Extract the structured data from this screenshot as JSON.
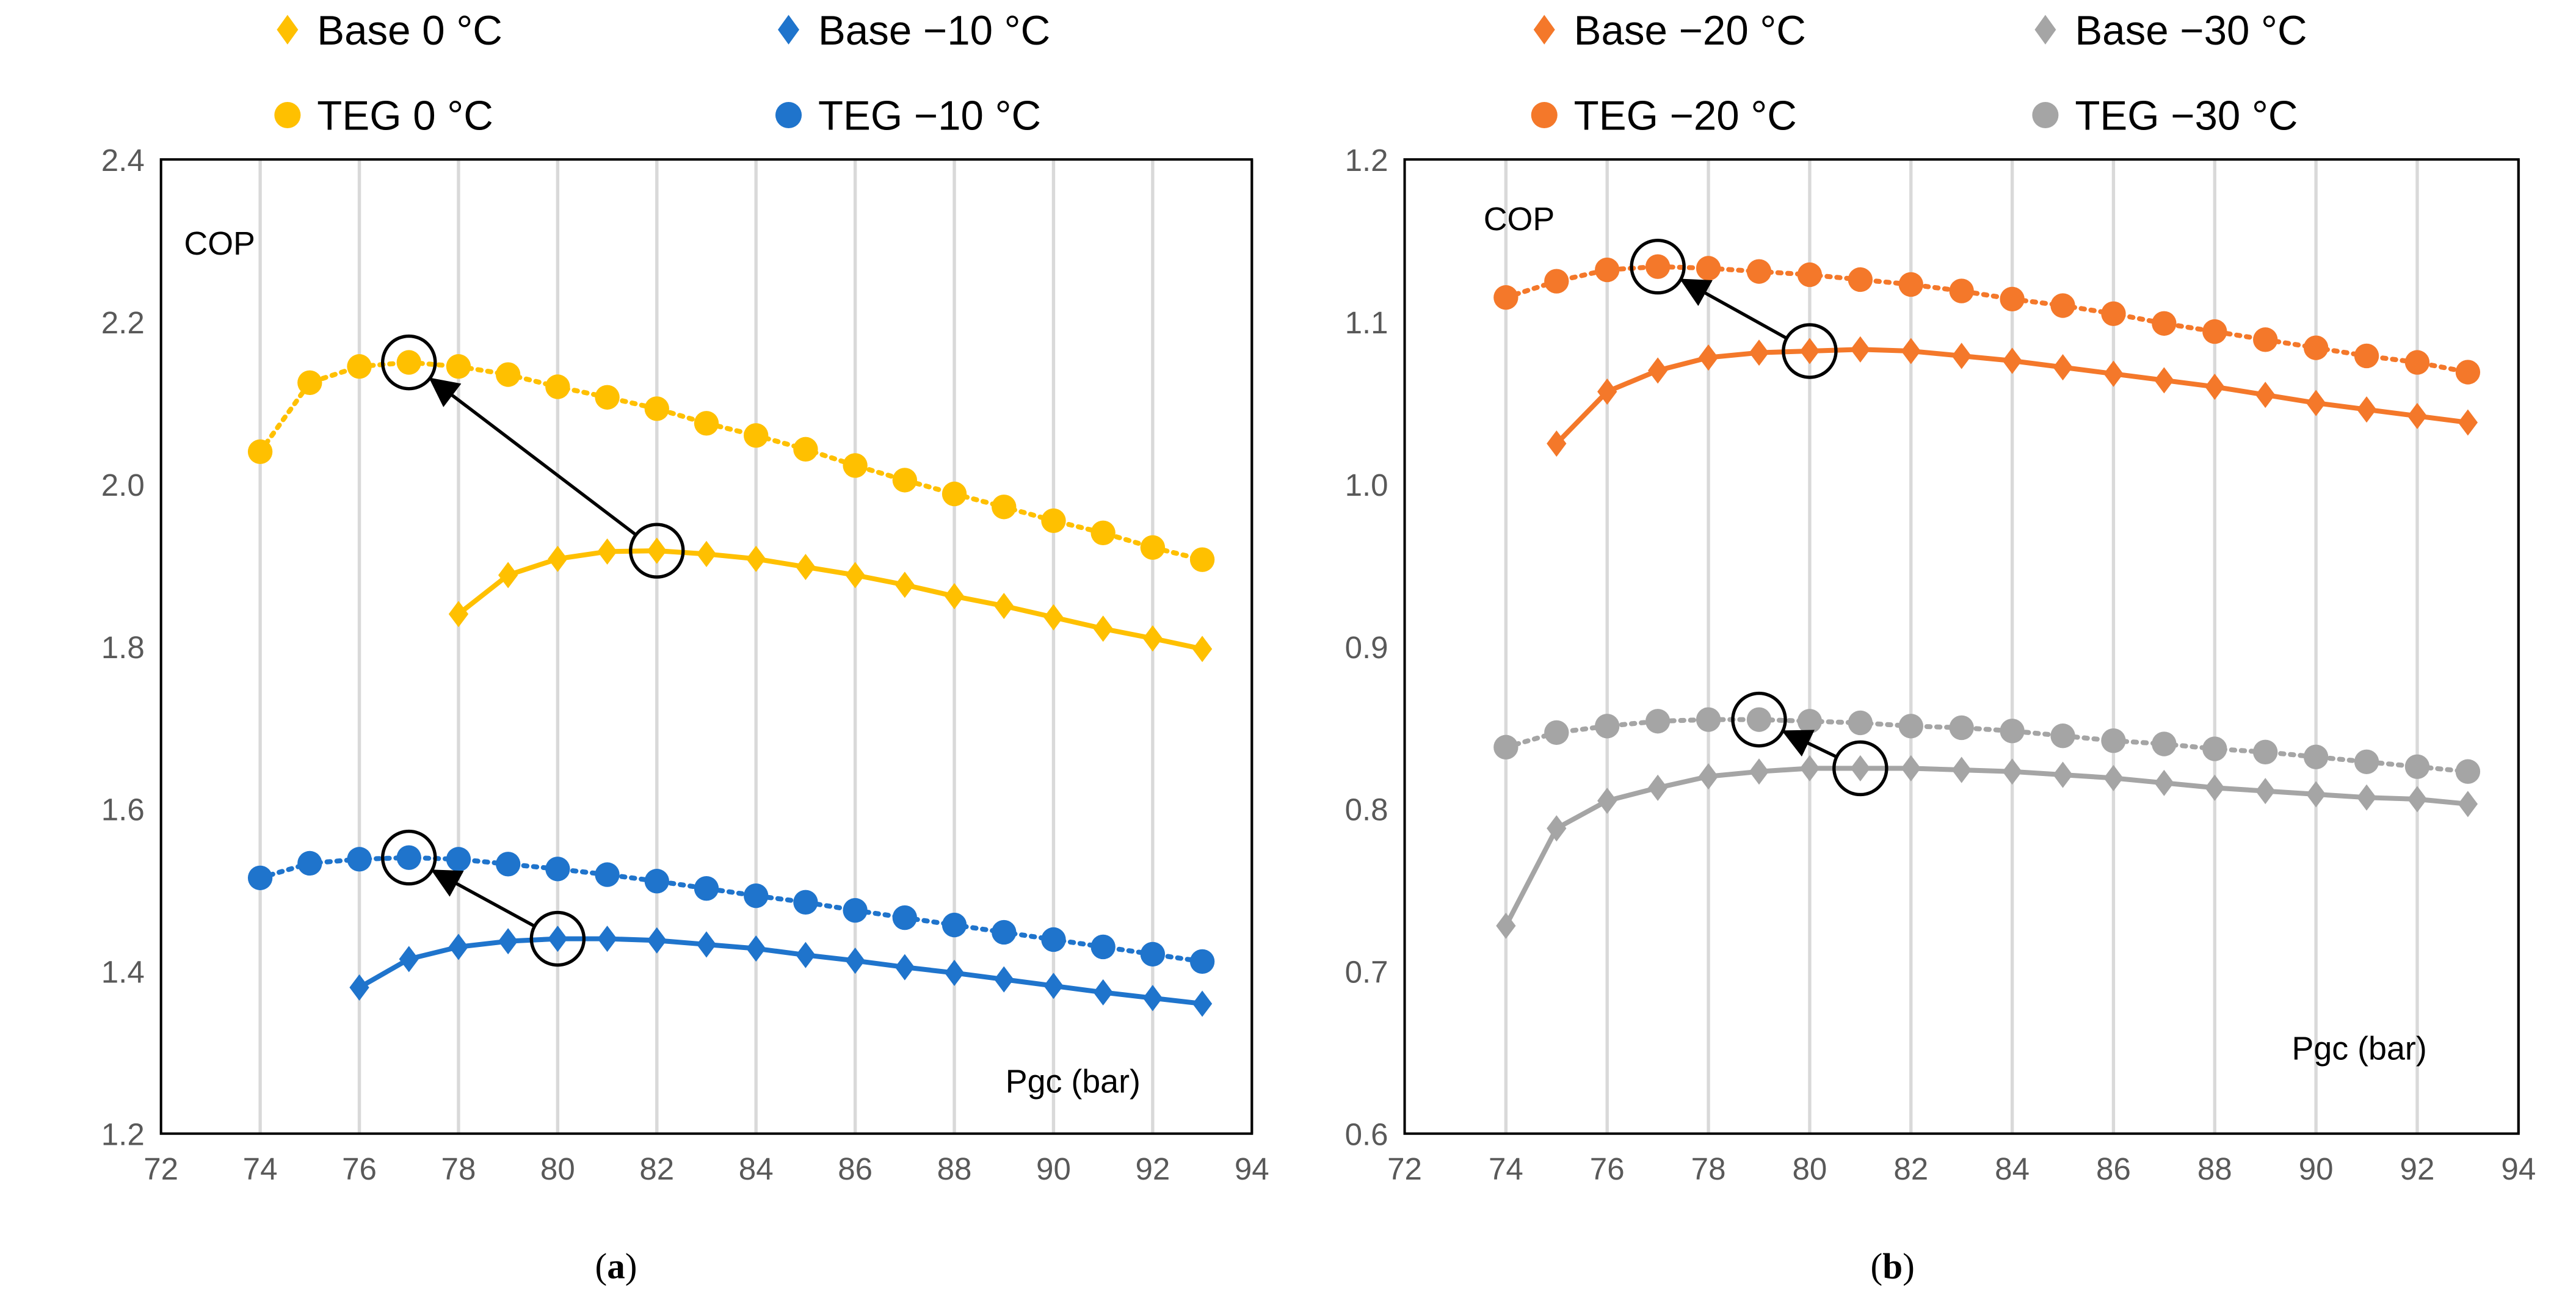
{
  "chart_data": [
    {
      "type": "scatter",
      "panel_label": "(a)",
      "caption_letter": "a",
      "ylabel": "COP",
      "xlabel": "Pgc (bar)",
      "xlim": [
        72,
        94
      ],
      "ylim": [
        1.2,
        2.4
      ],
      "xticks": [
        "72",
        "74",
        "76",
        "78",
        "80",
        "82",
        "84",
        "86",
        "88",
        "90",
        "92",
        "94"
      ],
      "yticks": [
        "1.2",
        "1.4",
        "1.6",
        "1.8",
        "2.0",
        "2.2",
        "2.4"
      ],
      "grid": "vertical",
      "legend_position": "top",
      "series": [
        {
          "name": "Base 0 °C",
          "marker": "diamond",
          "color": "#FFC000",
          "trend": "solid",
          "x": [
            78,
            79,
            80,
            81,
            82,
            83,
            84,
            85,
            86,
            87,
            88,
            89,
            90,
            91,
            92,
            93
          ],
          "y": [
            1.84,
            1.888,
            1.908,
            1.917,
            1.918,
            1.914,
            1.908,
            1.898,
            1.888,
            1.876,
            1.862,
            1.85,
            1.836,
            1.822,
            1.81,
            1.797
          ]
        },
        {
          "name": "Base −10 °C",
          "marker": "diamond",
          "color": "#1F74CC",
          "trend": "solid",
          "x": [
            76,
            77,
            78,
            79,
            80,
            81,
            82,
            83,
            84,
            85,
            86,
            87,
            88,
            89,
            90,
            91,
            92,
            93
          ],
          "y": [
            1.38,
            1.415,
            1.43,
            1.437,
            1.44,
            1.44,
            1.438,
            1.433,
            1.428,
            1.42,
            1.413,
            1.405,
            1.398,
            1.39,
            1.382,
            1.374,
            1.367,
            1.36
          ]
        },
        {
          "name": "TEG 0 °C",
          "marker": "circle",
          "color": "#FFC000",
          "trend": "dotted",
          "x": [
            74,
            75,
            76,
            77,
            78,
            79,
            80,
            81,
            82,
            83,
            84,
            85,
            86,
            87,
            88,
            89,
            90,
            91,
            92,
            93
          ],
          "y": [
            2.04,
            2.125,
            2.145,
            2.15,
            2.145,
            2.135,
            2.12,
            2.107,
            2.093,
            2.075,
            2.06,
            2.043,
            2.023,
            2.005,
            1.988,
            1.972,
            1.955,
            1.94,
            1.922,
            1.907
          ]
        },
        {
          "name": "TEG −10 °C",
          "marker": "circle",
          "color": "#1F74CC",
          "trend": "dotted",
          "x": [
            74,
            75,
            76,
            77,
            78,
            79,
            80,
            81,
            82,
            83,
            84,
            85,
            86,
            87,
            88,
            89,
            90,
            91,
            92,
            93
          ],
          "y": [
            1.515,
            1.533,
            1.538,
            1.54,
            1.538,
            1.532,
            1.526,
            1.519,
            1.511,
            1.502,
            1.493,
            1.485,
            1.475,
            1.466,
            1.457,
            1.448,
            1.439,
            1.43,
            1.421,
            1.412
          ]
        }
      ],
      "arrows": [
        {
          "from": [
            82,
            1.918
          ],
          "to": [
            77,
            2.15
          ]
        },
        {
          "from": [
            80,
            1.44
          ],
          "to": [
            77,
            1.54
          ]
        }
      ]
    },
    {
      "type": "scatter",
      "panel_label": "(b)",
      "caption_letter": "b",
      "ylabel": "COP",
      "xlabel": "Pgc (bar)",
      "xlim": [
        72,
        94
      ],
      "ylim": [
        0.6,
        1.2
      ],
      "xticks": [
        "72",
        "74",
        "76",
        "78",
        "80",
        "82",
        "84",
        "86",
        "88",
        "90",
        "92",
        "94"
      ],
      "yticks": [
        "0.6",
        "0.7",
        "0.8",
        "0.9",
        "1.0",
        "1.1",
        "1.2"
      ],
      "grid": "vertical",
      "legend_position": "top",
      "series": [
        {
          "name": "Base −20 °C",
          "marker": "diamond",
          "color": "#F4782A",
          "trend": "solid",
          "x": [
            75,
            76,
            77,
            78,
            79,
            80,
            81,
            82,
            83,
            84,
            85,
            86,
            87,
            88,
            89,
            90,
            91,
            92,
            93
          ],
          "y": [
            1.025,
            1.057,
            1.07,
            1.078,
            1.081,
            1.082,
            1.083,
            1.082,
            1.079,
            1.076,
            1.072,
            1.068,
            1.064,
            1.06,
            1.055,
            1.05,
            1.046,
            1.042,
            1.038
          ]
        },
        {
          "name": "Base −30 °C",
          "marker": "diamond",
          "color": "#A5A5A5",
          "trend": "solid",
          "x": [
            74,
            75,
            76,
            77,
            78,
            79,
            80,
            81,
            82,
            83,
            84,
            85,
            86,
            87,
            88,
            89,
            90,
            91,
            92,
            93
          ],
          "y": [
            0.728,
            0.788,
            0.805,
            0.813,
            0.82,
            0.823,
            0.825,
            0.825,
            0.825,
            0.824,
            0.823,
            0.821,
            0.819,
            0.816,
            0.813,
            0.811,
            0.809,
            0.807,
            0.806,
            0.803
          ]
        },
        {
          "name": "TEG −20 °C",
          "marker": "circle",
          "color": "#F4782A",
          "trend": "dotted",
          "x": [
            74,
            75,
            76,
            77,
            78,
            79,
            80,
            81,
            82,
            83,
            84,
            85,
            86,
            87,
            88,
            89,
            90,
            91,
            92,
            93
          ],
          "y": [
            1.115,
            1.125,
            1.132,
            1.134,
            1.133,
            1.131,
            1.129,
            1.126,
            1.123,
            1.119,
            1.114,
            1.11,
            1.105,
            1.099,
            1.094,
            1.089,
            1.084,
            1.079,
            1.075,
            1.069
          ]
        },
        {
          "name": "TEG −30 °C",
          "marker": "circle",
          "color": "#A5A5A5",
          "trend": "dotted",
          "x": [
            74,
            75,
            76,
            77,
            78,
            79,
            80,
            81,
            82,
            83,
            84,
            85,
            86,
            87,
            88,
            89,
            90,
            91,
            92,
            93
          ],
          "y": [
            0.838,
            0.847,
            0.851,
            0.854,
            0.855,
            0.855,
            0.854,
            0.853,
            0.851,
            0.85,
            0.848,
            0.845,
            0.842,
            0.84,
            0.837,
            0.835,
            0.832,
            0.829,
            0.826,
            0.823
          ]
        }
      ],
      "arrows": [
        {
          "from": [
            80,
            1.082
          ],
          "to": [
            77,
            1.134
          ]
        },
        {
          "from": [
            81,
            0.825
          ],
          "to": [
            79,
            0.855
          ]
        }
      ]
    }
  ]
}
